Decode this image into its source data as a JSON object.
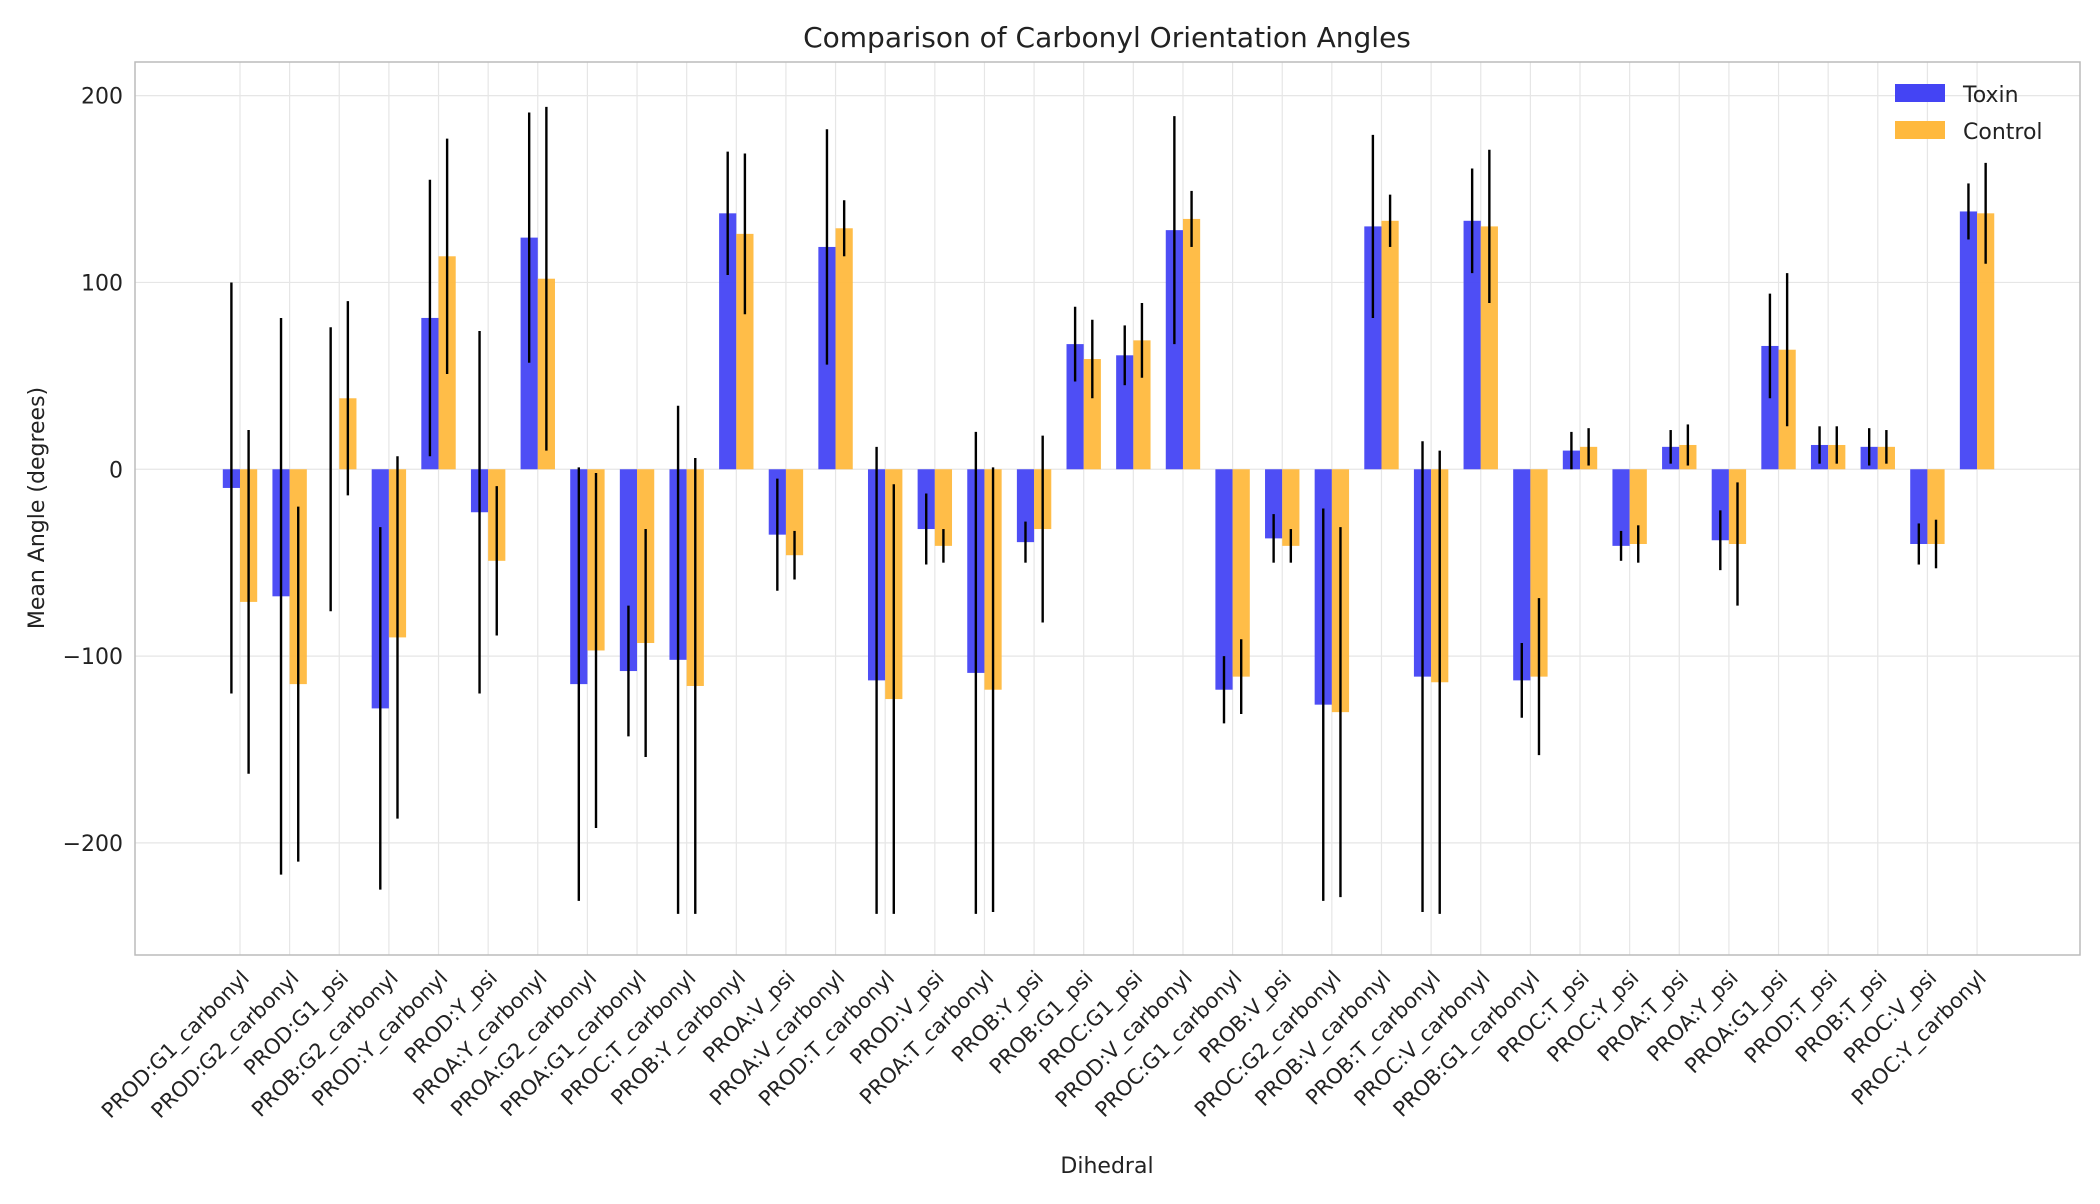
{
  "chart_data": {
    "type": "bar",
    "title": "Comparison of Carbonyl Orientation Angles",
    "xlabel": "Dihedral",
    "ylabel": "Mean Angle (degrees)",
    "ylim": [
      -260,
      218
    ],
    "yticks": [
      -200,
      -100,
      0,
      100,
      200
    ],
    "grid": true,
    "legend_position": "top-right",
    "categories": [
      "PROD:G1_carbonyl",
      "PROD:G2_carbonyl",
      "PROD:G1_psi",
      "PROB:G2_carbonyl",
      "PROD:Y_carbonyl",
      "PROD:Y_psi",
      "PROA:Y_carbonyl",
      "PROA:G2_carbonyl",
      "PROA:G1_carbonyl",
      "PROC:T_carbonyl",
      "PROB:Y_carbonyl",
      "PROA:V_psi",
      "PROA:V_carbonyl",
      "PROD:T_carbonyl",
      "PROD:V_psi",
      "PROA:T_carbonyl",
      "PROB:Y_psi",
      "PROB:G1_psi",
      "PROC:G1_psi",
      "PROD:V_carbonyl",
      "PROC:G1_carbonyl",
      "PROB:V_psi",
      "PROC:G2_carbonyl",
      "PROB:V_carbonyl",
      "PROB:T_carbonyl",
      "PROC:V_carbonyl",
      "PROB:G1_carbonyl",
      "PROC:T_psi",
      "PROC:Y_psi",
      "PROA:T_psi",
      "PROA:Y_psi",
      "PROA:G1_psi",
      "PROD:T_psi",
      "PROB:T_psi",
      "PROC:V_psi",
      "PROC:Y_carbonyl"
    ],
    "series": [
      {
        "name": "Toxin",
        "color": "#4444f4",
        "values": [
          -10,
          -68,
          0,
          -128,
          81,
          -23,
          124,
          -115,
          -108,
          -102,
          137,
          -35,
          119,
          -113,
          -32,
          -109,
          -39,
          67,
          61,
          128,
          -118,
          -37,
          -126,
          130,
          -111,
          133,
          -113,
          10,
          -41,
          12,
          -38,
          66,
          13,
          12,
          -40,
          138
        ],
        "errors": [
          110,
          149,
          76,
          97,
          74,
          97,
          67,
          116,
          35,
          136,
          33,
          30,
          63,
          125,
          19,
          129,
          11,
          20,
          16,
          61,
          18,
          13,
          105,
          49,
          126,
          28,
          20,
          10,
          8,
          9,
          16,
          28,
          10,
          10,
          11,
          15
        ]
      },
      {
        "name": "Control",
        "color": "#ffb93e",
        "values": [
          -71,
          -115,
          38,
          -90,
          114,
          -49,
          102,
          -97,
          -93,
          -116,
          126,
          -46,
          129,
          -123,
          -41,
          -118,
          -32,
          59,
          69,
          134,
          -111,
          -41,
          -130,
          133,
          -114,
          130,
          -111,
          12,
          -40,
          13,
          -40,
          64,
          13,
          12,
          -40,
          137
        ],
        "errors": [
          92,
          95,
          52,
          97,
          63,
          40,
          92,
          95,
          61,
          122,
          43,
          13,
          15,
          115,
          9,
          119,
          50,
          21,
          20,
          15,
          20,
          9,
          99,
          14,
          124,
          41,
          42,
          10,
          10,
          11,
          33,
          41,
          10,
          9,
          13,
          27
        ]
      }
    ]
  }
}
